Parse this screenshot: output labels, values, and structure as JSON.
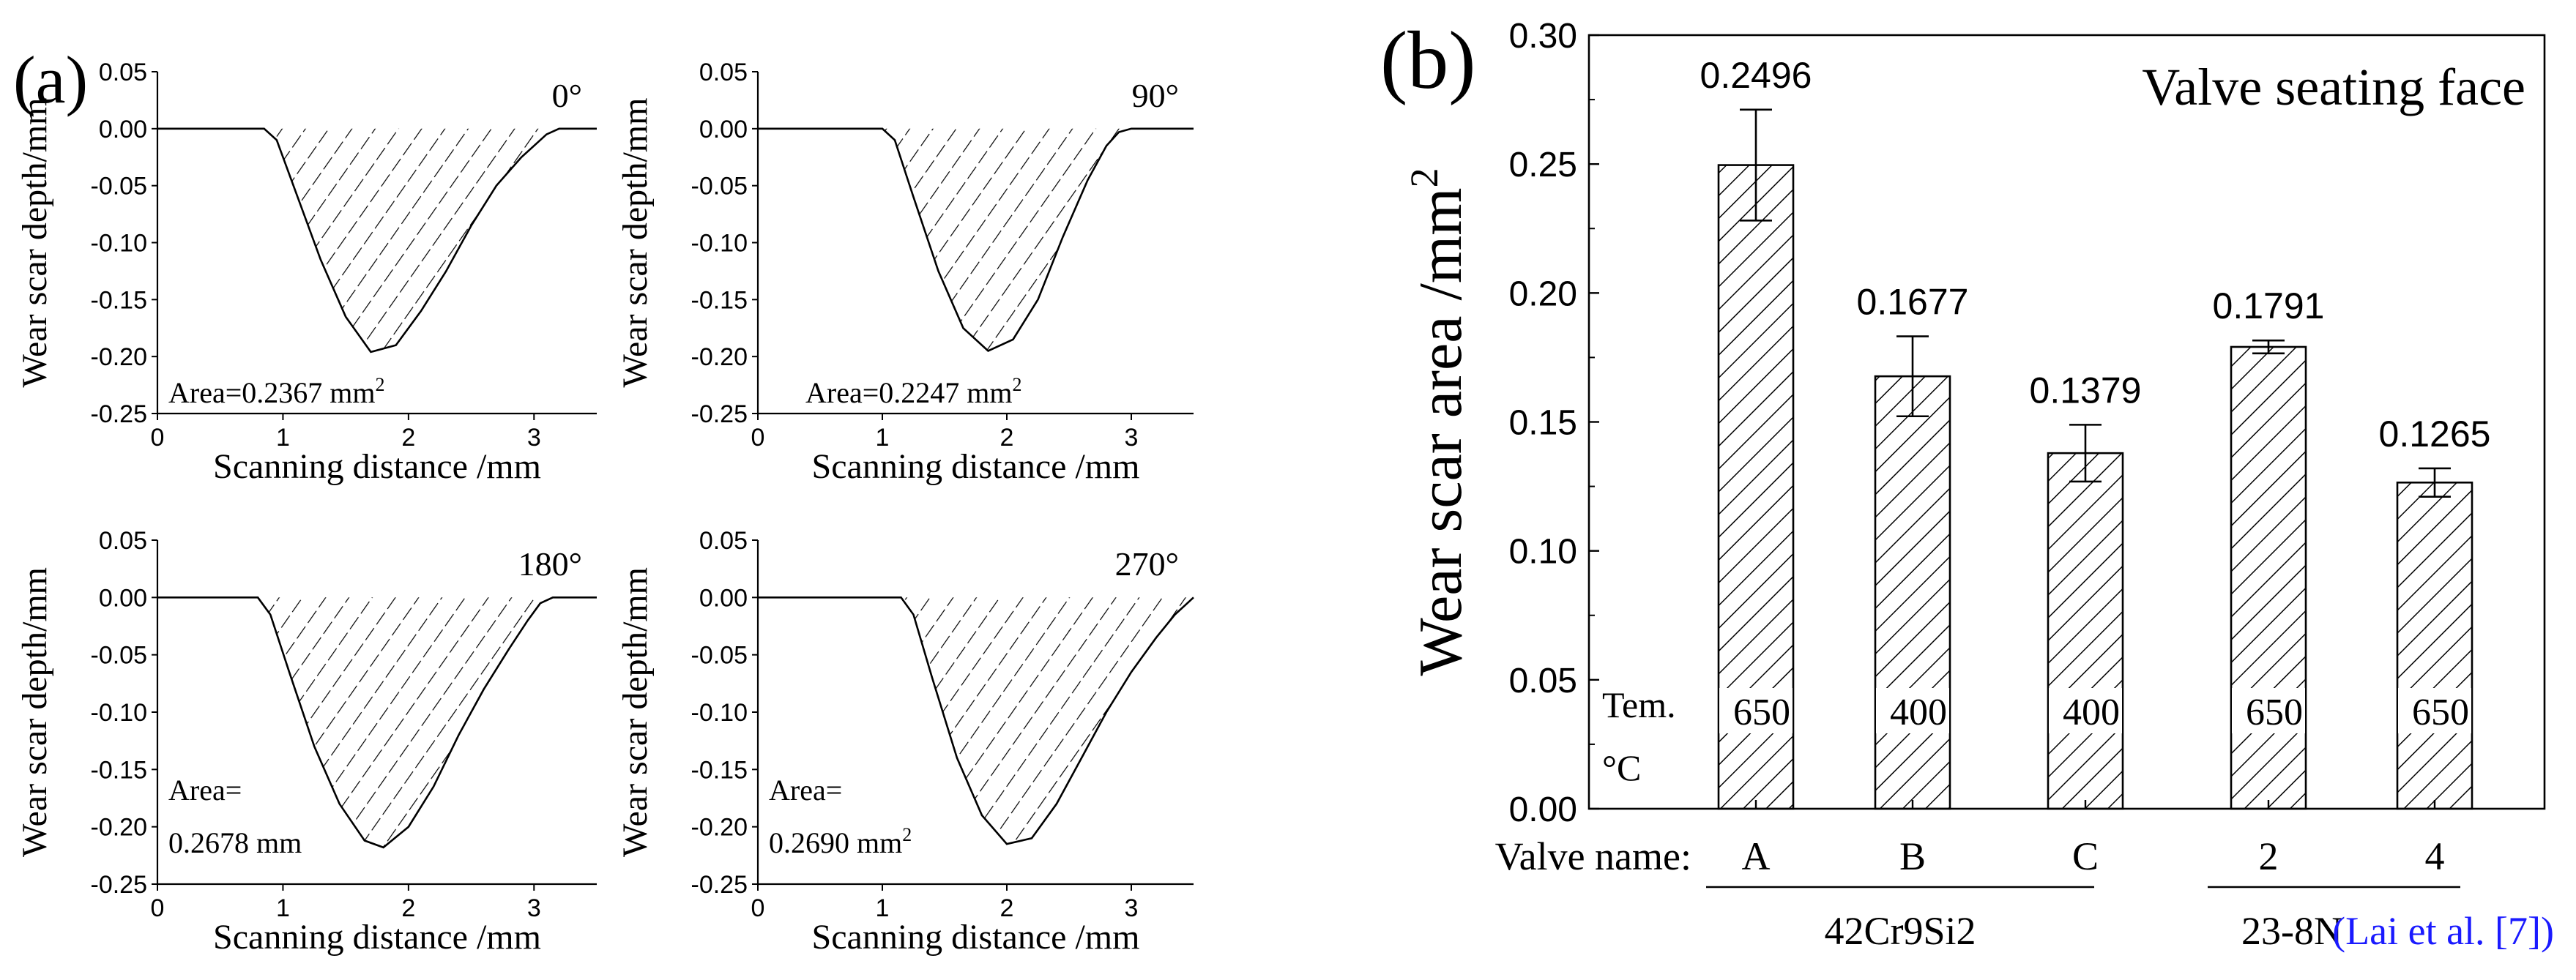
{
  "colors": {
    "ink": "#000000",
    "background": "#ffffff",
    "citation": "#1a1aff"
  },
  "chart_data": [
    {
      "type": "area",
      "panel": "a",
      "panel_label": "(a)",
      "orientation_label": "0°",
      "xlabel": "Scanning distance /mm",
      "ylabel": "Wear scar depth/mm",
      "xlim": [
        0,
        3.5
      ],
      "ylim": [
        -0.25,
        0.05
      ],
      "xticks": [
        "0",
        "1",
        "2",
        "3"
      ],
      "yticks": [
        "0.05",
        "0.00",
        "-0.05",
        "-0.10",
        "-0.15",
        "-0.20",
        "-0.25"
      ],
      "area_label": "Area=0.2367 mm",
      "area_unit_sup": "2",
      "profile": {
        "x": [
          0,
          0.85,
          0.95,
          1.1,
          1.3,
          1.5,
          1.7,
          1.9,
          2.1,
          2.3,
          2.5,
          2.7,
          2.9,
          3.0,
          3.1,
          3.2,
          3.5
        ],
        "y": [
          0,
          0,
          -0.01,
          -0.055,
          -0.115,
          -0.165,
          -0.196,
          -0.19,
          -0.16,
          -0.125,
          -0.085,
          -0.05,
          -0.025,
          -0.015,
          -0.005,
          0,
          0
        ]
      }
    },
    {
      "type": "area",
      "panel": "a",
      "orientation_label": "90°",
      "xlabel": "Scanning distance /mm",
      "ylabel": "Wear scar depth/mm",
      "xlim": [
        0,
        3.5
      ],
      "ylim": [
        -0.25,
        0.05
      ],
      "xticks": [
        "0",
        "1",
        "2",
        "3"
      ],
      "yticks": [
        "0.05",
        "0.00",
        "-0.05",
        "-0.10",
        "-0.15",
        "-0.20",
        "-0.25"
      ],
      "area_label": "Area=0.2247 mm",
      "area_unit_sup": "2",
      "profile": {
        "x": [
          0,
          1.0,
          1.1,
          1.25,
          1.45,
          1.65,
          1.85,
          2.05,
          2.25,
          2.45,
          2.65,
          2.8,
          2.9,
          3.0,
          3.5
        ],
        "y": [
          0,
          0,
          -0.01,
          -0.06,
          -0.125,
          -0.175,
          -0.195,
          -0.185,
          -0.15,
          -0.095,
          -0.045,
          -0.015,
          -0.003,
          0,
          0
        ]
      }
    },
    {
      "type": "area",
      "panel": "a",
      "orientation_label": "180°",
      "xlabel": "Scanning distance /mm",
      "ylabel": "Wear scar depth/mm",
      "xlim": [
        0,
        3.5
      ],
      "ylim": [
        -0.25,
        0.05
      ],
      "xticks": [
        "0",
        "1",
        "2",
        "3"
      ],
      "yticks": [
        "0.05",
        "0.00",
        "-0.05",
        "-0.10",
        "-0.15",
        "-0.20",
        "-0.25"
      ],
      "area_label": "Area=",
      "area_value": "0.2678 mm",
      "profile": {
        "x": [
          0,
          0.8,
          0.9,
          1.05,
          1.25,
          1.45,
          1.65,
          1.8,
          2.0,
          2.2,
          2.4,
          2.6,
          2.8,
          2.95,
          3.05,
          3.15,
          3.5
        ],
        "y": [
          0,
          0,
          -0.015,
          -0.065,
          -0.13,
          -0.18,
          -0.212,
          -0.218,
          -0.2,
          -0.165,
          -0.12,
          -0.08,
          -0.045,
          -0.02,
          -0.005,
          0,
          0
        ]
      }
    },
    {
      "type": "area",
      "panel": "a",
      "orientation_label": "270°",
      "xlabel": "Scanning distance /mm",
      "ylabel": "Wear scar depth/mm",
      "xlim": [
        0,
        3.5
      ],
      "ylim": [
        -0.25,
        0.05
      ],
      "xticks": [
        "0",
        "1",
        "2",
        "3"
      ],
      "yticks": [
        "0.05",
        "0.00",
        "-0.05",
        "-0.10",
        "-0.15",
        "-0.20",
        "-0.25"
      ],
      "area_label": "Area=",
      "area_value": "0.2690 mm",
      "area_unit_sup": "2",
      "profile": {
        "x": [
          0,
          1.15,
          1.25,
          1.4,
          1.6,
          1.8,
          2.0,
          2.2,
          2.4,
          2.6,
          2.8,
          3.0,
          3.2,
          3.35,
          3.45,
          3.5
        ],
        "y": [
          0,
          0,
          -0.015,
          -0.07,
          -0.14,
          -0.19,
          -0.215,
          -0.21,
          -0.18,
          -0.14,
          -0.1,
          -0.065,
          -0.035,
          -0.015,
          -0.005,
          0
        ]
      }
    },
    {
      "type": "bar",
      "panel": "b",
      "panel_label": "(b)",
      "title": "Valve seating face",
      "ylabel": "Wear scar area /mm",
      "ylabel_sup": "2",
      "ylim": [
        0,
        0.3
      ],
      "yticks": [
        "0.00",
        "0.05",
        "0.10",
        "0.15",
        "0.20",
        "0.25",
        "0.30"
      ],
      "xaxis_caption": "Valve name:",
      "temp_caption_1": "Tem.",
      "temp_caption_2": "°C",
      "categories": [
        "A",
        "B",
        "C",
        "2",
        "4"
      ],
      "values": [
        0.2496,
        0.1677,
        0.1379,
        0.1791,
        0.1265
      ],
      "value_labels": [
        "0.2496",
        "0.1677",
        "0.1379",
        "0.1791",
        "0.1265"
      ],
      "errors": [
        0.0215,
        0.0155,
        0.011,
        0.0025,
        0.0055
      ],
      "temperatures": [
        "650",
        "400",
        "400",
        "650",
        "650"
      ],
      "groups": [
        {
          "label": "42Cr9Si2",
          "members": [
            "A",
            "B",
            "C"
          ]
        },
        {
          "label": "23-8N",
          "members": [
            "2",
            "4"
          ],
          "citation": "(Lai et al. [7])"
        }
      ]
    }
  ]
}
